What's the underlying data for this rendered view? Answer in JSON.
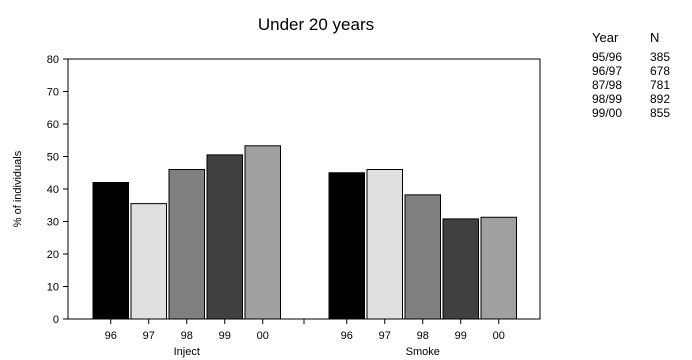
{
  "chart_data": {
    "type": "bar",
    "title": "Under 20 years",
    "ylabel": "% of individuals",
    "ylim": [
      0,
      80
    ],
    "yticks": [
      0,
      10,
      20,
      30,
      40,
      50,
      60,
      70,
      80
    ],
    "categories": [
      "96",
      "97",
      "98",
      "99",
      "00"
    ],
    "groups": [
      {
        "name": "Inject",
        "values": [
          42,
          35.5,
          46,
          50.5,
          53.3
        ]
      },
      {
        "name": "Smoke",
        "values": [
          45,
          46,
          38.2,
          30.8,
          31.3
        ]
      }
    ],
    "bar_colors": [
      "#000000",
      "#e0e0e0",
      "#808080",
      "#404040",
      "#a0a0a0"
    ],
    "grid": false
  },
  "table": {
    "headers": {
      "year": "Year",
      "n": "N"
    },
    "rows": [
      {
        "year": "95/96",
        "n": "385"
      },
      {
        "year": "96/97",
        "n": "678"
      },
      {
        "year": "87/98",
        "n": "781"
      },
      {
        "year": "98/99",
        "n": "892"
      },
      {
        "year": "99/00",
        "n": "855"
      }
    ]
  }
}
